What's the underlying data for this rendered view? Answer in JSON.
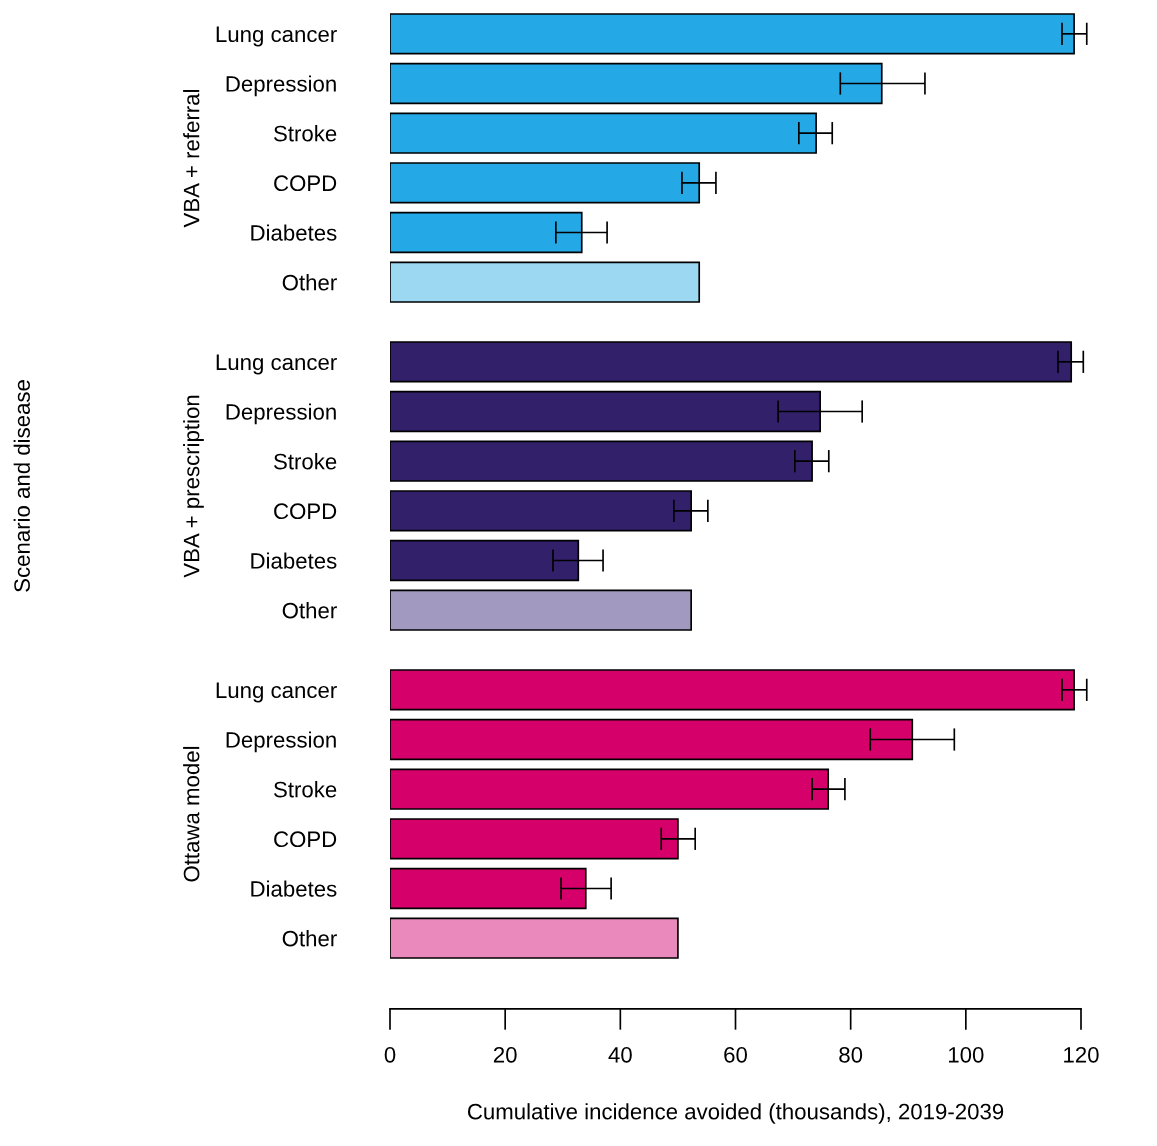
{
  "chart_data": [
    {
      "type": "bar",
      "orientation": "horizontal",
      "ylabel": "VBA + referral",
      "tick_labels": "y",
      "categories": [
        "Lung cancer",
        "Depression",
        "Stroke",
        "COPD",
        "Diabetes",
        "Other"
      ],
      "values": [
        118.8,
        85.4,
        74.0,
        53.7,
        33.3,
        53.7
      ],
      "errors": [
        [
          116.7,
          121.0
        ],
        [
          78.2,
          92.9
        ],
        [
          71.0,
          76.8
        ],
        [
          50.7,
          56.6
        ],
        [
          28.8,
          37.7
        ],
        null
      ],
      "colors": [
        "#25a9e6",
        "#25a9e6",
        "#25a9e6",
        "#25a9e6",
        "#25a9e6",
        "#9dd8f3"
      ],
      "xlim": [
        0,
        120
      ]
    },
    {
      "type": "bar",
      "orientation": "horizontal",
      "ylabel": "VBA + prescription",
      "tick_labels": "y",
      "annotations": [
        "Scenario and disease"
      ],
      "categories": [
        "Lung cancer",
        "Depression",
        "Stroke",
        "COPD",
        "Diabetes",
        "Other"
      ],
      "values": [
        118.3,
        74.7,
        73.3,
        52.3,
        32.7,
        52.3
      ],
      "errors": [
        [
          116.0,
          120.4
        ],
        [
          67.4,
          82.0
        ],
        [
          70.3,
          76.2
        ],
        [
          49.3,
          55.2
        ],
        [
          28.3,
          37.0
        ],
        null
      ],
      "colors": [
        "#32206b",
        "#32206b",
        "#32206b",
        "#32206b",
        "#32206b",
        "#a199bf"
      ],
      "xlim": [
        0,
        120
      ]
    },
    {
      "type": "bar",
      "orientation": "horizontal",
      "ylabel": "Ottawa model",
      "xlabel": "Cumulative incidence avoided (thousands), 2019-2039",
      "categories": [
        "Lung cancer",
        "Depression",
        "Stroke",
        "COPD",
        "Diabetes",
        "Other"
      ],
      "values": [
        118.8,
        90.7,
        76.1,
        50.0,
        34.0,
        50.0
      ],
      "errors": [
        [
          116.7,
          121.0
        ],
        [
          83.4,
          98.0
        ],
        [
          73.3,
          79.0
        ],
        [
          47.1,
          53.0
        ],
        [
          29.7,
          38.4
        ],
        null
      ],
      "colors": [
        "#d6006a",
        "#d6006a",
        "#d6006a",
        "#d6006a",
        "#d6006a",
        "#ea8abc"
      ],
      "xlim": [
        0,
        120
      ],
      "xticks": [
        0,
        20,
        40,
        60,
        80,
        100,
        120
      ]
    }
  ]
}
